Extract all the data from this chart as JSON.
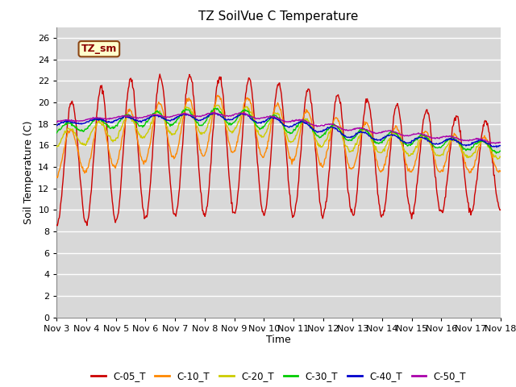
{
  "title": "TZ SoilVue C Temperature",
  "xlabel": "Time",
  "ylabel": "Soil Temperature (C)",
  "annotation_text": "TZ_sm",
  "ylim": [
    0,
    27
  ],
  "yticks": [
    0,
    2,
    4,
    6,
    8,
    10,
    12,
    14,
    16,
    18,
    20,
    22,
    24,
    26
  ],
  "xtick_labels": [
    "Nov 3",
    "Nov 4",
    "Nov 5",
    "Nov 6",
    "Nov 7",
    "Nov 8",
    "Nov 9",
    "Nov 10",
    "Nov 11",
    "Nov 12",
    "Nov 13",
    "Nov 14",
    "Nov 15",
    "Nov 16",
    "Nov 17",
    "Nov 18"
  ],
  "series_colors": {
    "C-05_T": "#cc0000",
    "C-10_T": "#ff8800",
    "C-20_T": "#cccc00",
    "C-30_T": "#00cc00",
    "C-40_T": "#0000cc",
    "C-50_T": "#aa00aa"
  },
  "plot_bg_color": "#d8d8d8",
  "grid_color": "#ffffff",
  "title_fontsize": 11,
  "axis_label_fontsize": 9,
  "tick_fontsize": 8,
  "legend_fontsize": 8.5,
  "line_width": 1.0
}
